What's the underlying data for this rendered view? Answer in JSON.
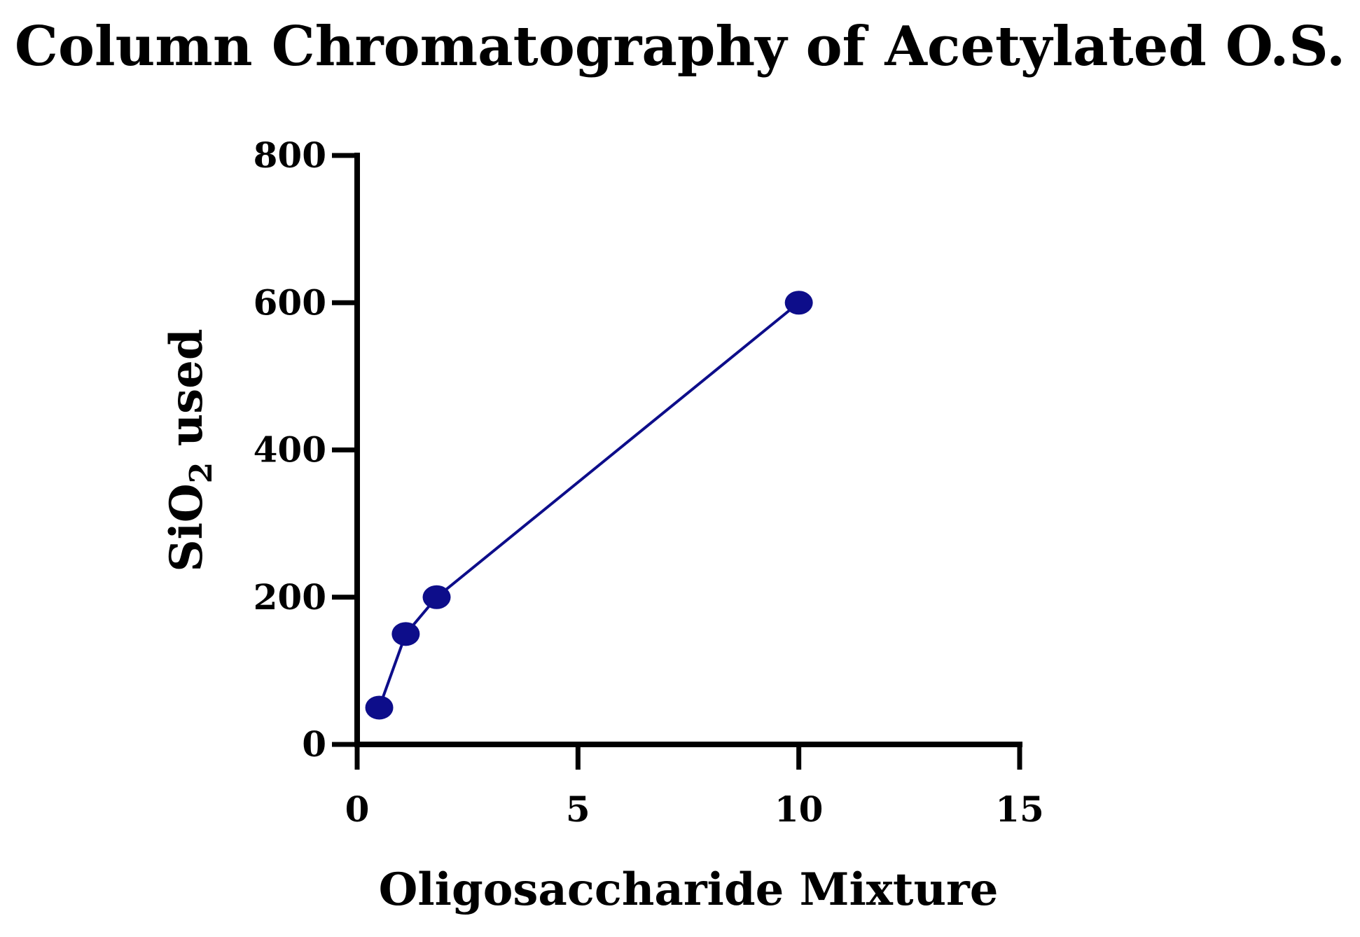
{
  "chart_data": {
    "type": "line",
    "title": "Column Chromatography of Acetylated  O.S.",
    "xlabel": "Oligosaccharide Mixture",
    "ylabel": {
      "main": "SiO",
      "subscript": "2",
      "suffix": " used"
    },
    "xlim": [
      0,
      15
    ],
    "ylim": [
      0,
      800
    ],
    "xticks": [
      0,
      5,
      10,
      15
    ],
    "yticks": [
      0,
      200,
      400,
      600,
      800
    ],
    "grid": false,
    "series": [
      {
        "x": [
          0.5,
          1.1,
          1.8,
          10
        ],
        "y": [
          50,
          150,
          200,
          600
        ],
        "color": "#0d0d8a",
        "marker": "circle"
      }
    ]
  }
}
